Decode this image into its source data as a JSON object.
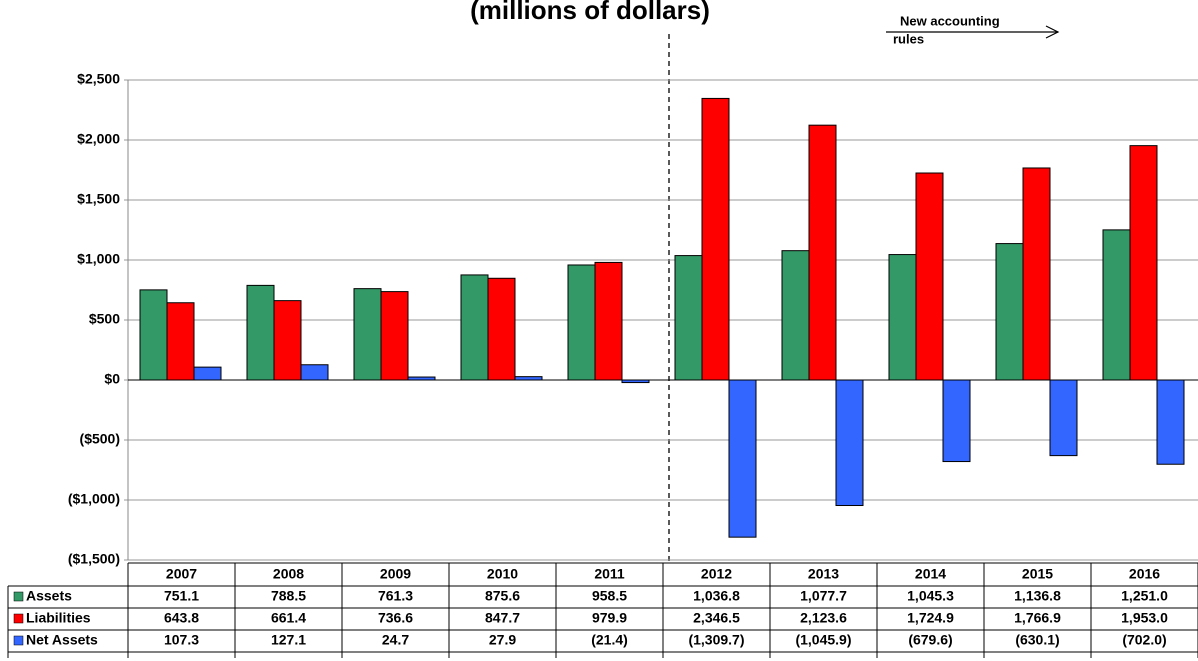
{
  "chart_data": {
    "type": "bar",
    "title": "(millions of dollars)",
    "categories": [
      "2007",
      "2008",
      "2009",
      "2010",
      "2011",
      "2012",
      "2013",
      "2014",
      "2015",
      "2016"
    ],
    "series": [
      {
        "name": "Assets",
        "color": "#339966",
        "values": [
          751.1,
          788.5,
          761.3,
          875.6,
          958.5,
          1036.8,
          1077.7,
          1045.3,
          1136.8,
          1251.0
        ],
        "value_labels": [
          "751.1",
          "788.5",
          "761.3",
          "875.6",
          "958.5",
          "1,036.8",
          "1,077.7",
          "1,045.3",
          "1,136.8",
          "1,251.0"
        ]
      },
      {
        "name": "Liabilities",
        "color": "#ff0000",
        "values": [
          643.8,
          661.4,
          736.6,
          847.7,
          979.9,
          2346.5,
          2123.6,
          1724.9,
          1766.9,
          1953.0
        ],
        "value_labels": [
          "643.8",
          "661.4",
          "736.6",
          "847.7",
          "979.9",
          "2,346.5",
          "2,123.6",
          "1,724.9",
          "1,766.9",
          "1,953.0"
        ]
      },
      {
        "name": "Net Assets",
        "color": "#3366ff",
        "values": [
          107.3,
          127.1,
          24.7,
          27.9,
          -21.4,
          -1309.7,
          -1045.9,
          -679.6,
          -630.1,
          -702.0
        ],
        "value_labels": [
          "107.3",
          "127.1",
          "24.7",
          "27.9",
          "(21.4)",
          "(1,309.7)",
          "(1,045.9)",
          "(679.6)",
          "(630.1)",
          "(702.0)"
        ]
      }
    ],
    "ylim": [
      -1500,
      2500
    ],
    "yticks": [
      {
        "value": -1500,
        "label": "($1,500)"
      },
      {
        "value": -1000,
        "label": "($1,000)"
      },
      {
        "value": -500,
        "label": "($500)"
      },
      {
        "value": 0,
        "label": "$0"
      },
      {
        "value": 500,
        "label": "$500"
      },
      {
        "value": 1000,
        "label": "$1,000"
      },
      {
        "value": 1500,
        "label": "$1,500"
      },
      {
        "value": 2000,
        "label": "$2,000"
      },
      {
        "value": 2500,
        "label": "$2,500"
      }
    ],
    "grid": true,
    "annotations": [
      "New accounting",
      "rules"
    ]
  }
}
